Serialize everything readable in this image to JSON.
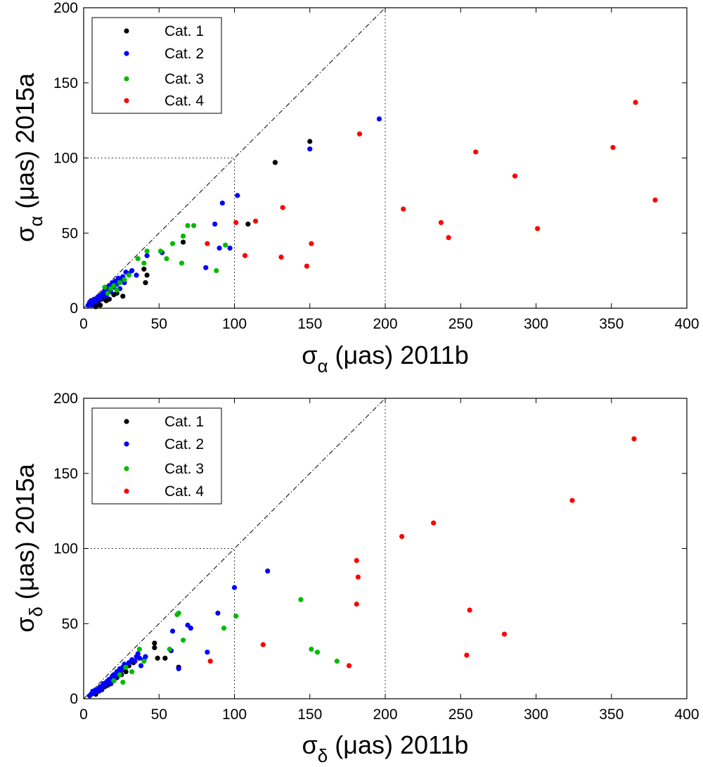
{
  "colors": {
    "cat1": "#000000",
    "cat2": "#0000ff",
    "cat3": "#00bb00",
    "cat4": "#ff0000",
    "axes": "#000000",
    "background": "#ffffff"
  },
  "chart_data": [
    {
      "type": "scatter",
      "name": "right-ascension",
      "xlabel_symbol": "σ",
      "xlabel_sub": "α",
      "xlabel_text": " (μas) 2011b",
      "ylabel_symbol": "σ",
      "ylabel_sub": "α",
      "ylabel_text": " (μas) 2015a",
      "xlim": [
        0,
        400
      ],
      "ylim": [
        0,
        200
      ],
      "xticks": [
        0,
        50,
        100,
        150,
        200,
        250,
        300,
        350,
        400
      ],
      "yticks": [
        0,
        50,
        100,
        150,
        200
      ],
      "xtick_labels": [
        "0",
        "50",
        "100",
        "150",
        "200",
        "250",
        "300",
        "350",
        "400"
      ],
      "ytick_labels": [
        "0",
        "50",
        "100",
        "150",
        "200"
      ],
      "legend": {
        "position": "top-left",
        "entries": [
          "Cat. 1",
          "Cat. 2",
          "Cat. 3",
          "Cat. 4"
        ]
      },
      "reference_lines": {
        "identity": [
          [
            0,
            0
          ],
          [
            200,
            200
          ]
        ],
        "vertical_dotted": [
          100,
          200
        ],
        "horizontal_dotted_at": 100,
        "horizontal_dotted_to_x": 100
      },
      "series": [
        {
          "name": "Cat. 1",
          "color_key": "cat1",
          "points": [
            [
              3,
              2
            ],
            [
              4,
              3
            ],
            [
              5,
              5
            ],
            [
              6,
              4
            ],
            [
              7,
              2
            ],
            [
              8,
              1
            ],
            [
              9,
              3
            ],
            [
              10,
              5
            ],
            [
              11,
              2
            ],
            [
              12,
              6
            ],
            [
              14,
              8
            ],
            [
              15,
              5
            ],
            [
              17,
              6
            ],
            [
              20,
              9
            ],
            [
              22,
              10
            ],
            [
              26,
              8
            ],
            [
              40,
              26
            ],
            [
              41,
              17
            ],
            [
              42,
              22
            ],
            [
              66,
              44
            ],
            [
              109,
              56
            ],
            [
              127,
              97
            ],
            [
              150,
              111
            ]
          ]
        },
        {
          "name": "Cat. 2",
          "color_key": "cat2",
          "points": [
            [
              3,
              2
            ],
            [
              4,
              4
            ],
            [
              5,
              2
            ],
            [
              6,
              5
            ],
            [
              7,
              6
            ],
            [
              8,
              4
            ],
            [
              9,
              7
            ],
            [
              10,
              8
            ],
            [
              11,
              6
            ],
            [
              12,
              9
            ],
            [
              13,
              10
            ],
            [
              14,
              12
            ],
            [
              15,
              8
            ],
            [
              16,
              13
            ],
            [
              17,
              15
            ],
            [
              18,
              11
            ],
            [
              19,
              17
            ],
            [
              20,
              14
            ],
            [
              21,
              18
            ],
            [
              22,
              16
            ],
            [
              23,
              20
            ],
            [
              24,
              13
            ],
            [
              25,
              19
            ],
            [
              26,
              21
            ],
            [
              27,
              17
            ],
            [
              28,
              24
            ],
            [
              30,
              23
            ],
            [
              32,
              25
            ],
            [
              35,
              22
            ],
            [
              42,
              35
            ],
            [
              52,
              37
            ],
            [
              81,
              27
            ],
            [
              87,
              56
            ],
            [
              90,
              40
            ],
            [
              92,
              70
            ],
            [
              97,
              40
            ],
            [
              102,
              75
            ],
            [
              150,
              106
            ],
            [
              196,
              126
            ]
          ]
        },
        {
          "name": "Cat. 3",
          "color_key": "cat3",
          "points": [
            [
              14,
              14
            ],
            [
              16,
              10
            ],
            [
              18,
              13
            ],
            [
              20,
              15
            ],
            [
              22,
              12
            ],
            [
              24,
              17
            ],
            [
              27,
              19
            ],
            [
              30,
              22
            ],
            [
              36,
              33
            ],
            [
              40,
              30
            ],
            [
              42,
              38
            ],
            [
              51,
              38
            ],
            [
              55,
              33
            ],
            [
              59,
              43
            ],
            [
              65,
              30
            ],
            [
              66,
              48
            ],
            [
              69,
              55
            ],
            [
              73,
              55
            ],
            [
              88,
              25
            ],
            [
              94,
              42
            ]
          ]
        },
        {
          "name": "Cat. 4",
          "color_key": "cat4",
          "points": [
            [
              82,
              43
            ],
            [
              101,
              57
            ],
            [
              107,
              35
            ],
            [
              114,
              58
            ],
            [
              131,
              34
            ],
            [
              132,
              67
            ],
            [
              148,
              28
            ],
            [
              151,
              43
            ],
            [
              183,
              116
            ],
            [
              212,
              66
            ],
            [
              237,
              57
            ],
            [
              242,
              47
            ],
            [
              260,
              104
            ],
            [
              286,
              88
            ],
            [
              301,
              53
            ],
            [
              351,
              107
            ],
            [
              366,
              137
            ],
            [
              379,
              72
            ]
          ]
        }
      ]
    },
    {
      "type": "scatter",
      "name": "declination",
      "xlabel_symbol": "σ",
      "xlabel_sub": "δ",
      "xlabel_text": " (μas) 2011b",
      "ylabel_symbol": "σ",
      "ylabel_sub": "δ",
      "ylabel_text": " (μas) 2015a",
      "xlim": [
        0,
        400
      ],
      "ylim": [
        0,
        200
      ],
      "xticks": [
        0,
        50,
        100,
        150,
        200,
        250,
        300,
        350,
        400
      ],
      "yticks": [
        0,
        50,
        100,
        150,
        200
      ],
      "xtick_labels": [
        "0",
        "50",
        "100",
        "150",
        "200",
        "250",
        "300",
        "350",
        "400"
      ],
      "ytick_labels": [
        "0",
        "50",
        "100",
        "150",
        "200"
      ],
      "legend": {
        "position": "top-left",
        "entries": [
          "Cat. 1",
          "Cat. 2",
          "Cat. 3",
          "Cat. 4"
        ]
      },
      "reference_lines": {
        "identity": [
          [
            0,
            0
          ],
          [
            200,
            200
          ]
        ],
        "vertical_dotted": [
          100,
          200
        ],
        "horizontal_dotted_at": 100,
        "horizontal_dotted_to_x": 100
      },
      "series": [
        {
          "name": "Cat. 1",
          "color_key": "cat1",
          "points": [
            [
              4,
              2
            ],
            [
              5,
              3
            ],
            [
              6,
              4
            ],
            [
              7,
              5
            ],
            [
              8,
              3
            ],
            [
              9,
              6
            ],
            [
              10,
              5
            ],
            [
              11,
              7
            ],
            [
              12,
              6
            ],
            [
              14,
              8
            ],
            [
              16,
              9
            ],
            [
              18,
              10
            ],
            [
              20,
              12
            ],
            [
              22,
              14
            ],
            [
              25,
              16
            ],
            [
              28,
              18
            ],
            [
              30,
              22
            ],
            [
              33,
              24
            ],
            [
              47,
              37
            ],
            [
              47,
              34
            ],
            [
              49,
              27
            ],
            [
              54,
              27
            ],
            [
              63,
              21
            ]
          ]
        },
        {
          "name": "Cat. 2",
          "color_key": "cat2",
          "points": [
            [
              4,
              2
            ],
            [
              5,
              3
            ],
            [
              6,
              5
            ],
            [
              7,
              4
            ],
            [
              8,
              6
            ],
            [
              9,
              5
            ],
            [
              10,
              7
            ],
            [
              11,
              8
            ],
            [
              12,
              6
            ],
            [
              13,
              10
            ],
            [
              14,
              9
            ],
            [
              15,
              11
            ],
            [
              16,
              12
            ],
            [
              17,
              13
            ],
            [
              18,
              10
            ],
            [
              19,
              15
            ],
            [
              20,
              16
            ],
            [
              21,
              14
            ],
            [
              22,
              18
            ],
            [
              23,
              17
            ],
            [
              24,
              20
            ],
            [
              25,
              19
            ],
            [
              26,
              21
            ],
            [
              27,
              23
            ],
            [
              28,
              22
            ],
            [
              30,
              24
            ],
            [
              32,
              26
            ],
            [
              34,
              25
            ],
            [
              35,
              28
            ],
            [
              36,
              30
            ],
            [
              37,
              27
            ],
            [
              38,
              22
            ],
            [
              40,
              26
            ],
            [
              41,
              28
            ],
            [
              58,
              32
            ],
            [
              59,
              45
            ],
            [
              63,
              20
            ],
            [
              69,
              49
            ],
            [
              71,
              47
            ],
            [
              82,
              31
            ],
            [
              89,
              57
            ],
            [
              100,
              74
            ],
            [
              122,
              85
            ]
          ]
        },
        {
          "name": "Cat. 3",
          "color_key": "cat3",
          "points": [
            [
              20,
              12
            ],
            [
              24,
              16
            ],
            [
              26,
              11
            ],
            [
              28,
              21
            ],
            [
              32,
              18
            ],
            [
              37,
              33
            ],
            [
              40,
              25
            ],
            [
              57,
              33
            ],
            [
              62,
              56
            ],
            [
              63,
              57
            ],
            [
              66,
              39
            ],
            [
              93,
              47
            ],
            [
              101,
              55
            ],
            [
              144,
              66
            ],
            [
              151,
              33
            ],
            [
              155,
              31
            ],
            [
              168,
              25
            ]
          ]
        },
        {
          "name": "Cat. 4",
          "color_key": "cat4",
          "points": [
            [
              84,
              25
            ],
            [
              119,
              36
            ],
            [
              176,
              22
            ],
            [
              181,
              63
            ],
            [
              181,
              92
            ],
            [
              182,
              81
            ],
            [
              211,
              108
            ],
            [
              232,
              117
            ],
            [
              254,
              29
            ],
            [
              256,
              59
            ],
            [
              279,
              43
            ],
            [
              324,
              132
            ],
            [
              365,
              173
            ]
          ]
        }
      ]
    }
  ]
}
